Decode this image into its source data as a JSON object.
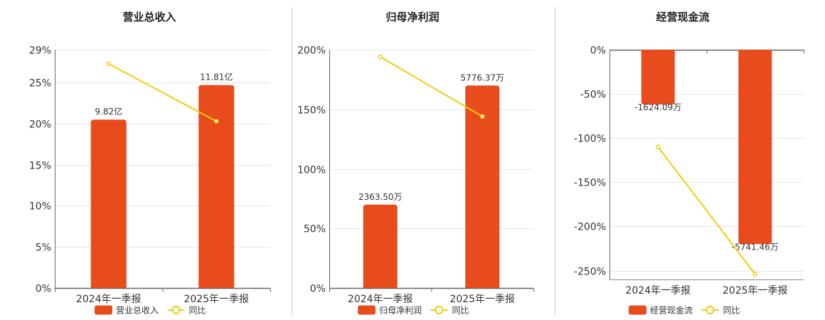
{
  "legend_line_label": "同比",
  "colors": {
    "bar": "#E84B1C",
    "line": "#F2CC0C",
    "grid": "#E3E6EE",
    "axis": "#555555",
    "divider": "#C8C8C8"
  },
  "chart_data": [
    {
      "type": "bar",
      "title": "营业总收入",
      "categories": [
        "2024年一季报",
        "2025年一季报"
      ],
      "series": [
        {
          "name": "营业总收入",
          "type": "bar",
          "values": [
            20.5,
            24.7
          ],
          "labels": [
            "9.82亿",
            "11.81亿"
          ]
        },
        {
          "name": "同比",
          "type": "line",
          "values": [
            27.3,
            20.3
          ]
        }
      ],
      "yticks": [
        "29%",
        "25%",
        "20%",
        "15%",
        "10%",
        "5%",
        "0%"
      ],
      "ytick_values": [
        29,
        25,
        20,
        15,
        10,
        5,
        0
      ],
      "ylim": [
        0,
        29
      ],
      "legend": "bottom"
    },
    {
      "type": "bar",
      "title": "归母净利润",
      "categories": [
        "2024年一季报",
        "2025年一季报"
      ],
      "series": [
        {
          "name": "归母净利润",
          "type": "bar",
          "values": [
            70,
            170
          ],
          "labels": [
            "2363.50万",
            "5776.37万"
          ]
        },
        {
          "name": "同比",
          "type": "line",
          "values": [
            194,
            144
          ]
        }
      ],
      "yticks": [
        "200%",
        "150%",
        "100%",
        "50%",
        "0%"
      ],
      "ytick_values": [
        200,
        150,
        100,
        50,
        0
      ],
      "ylim": [
        0,
        200
      ],
      "legend": "bottom"
    },
    {
      "type": "bar",
      "title": "经营现金流",
      "categories": [
        "2024年一季报",
        "2025年一季报"
      ],
      "series": [
        {
          "name": "经营现金流",
          "type": "bar",
          "values": [
            -62,
            -220
          ],
          "labels": [
            "-1624.09万",
            "-5741.46万"
          ]
        },
        {
          "name": "同比",
          "type": "line",
          "values": [
            -110,
            -254
          ]
        }
      ],
      "yticks": [
        "0%",
        "-50%",
        "-100%",
        "-150%",
        "-200%",
        "-250%"
      ],
      "ytick_values": [
        0,
        -50,
        -100,
        -150,
        -200,
        -250
      ],
      "ylim": [
        -260,
        0
      ],
      "legend": "bottom"
    }
  ]
}
